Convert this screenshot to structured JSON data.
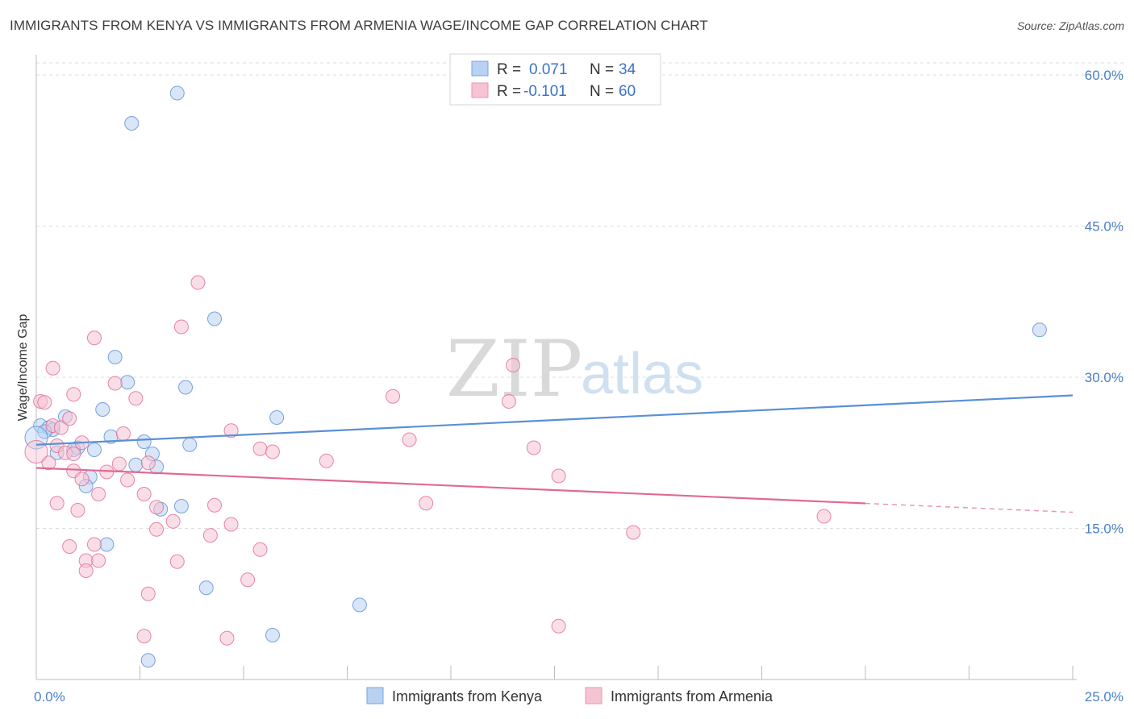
{
  "chart_data": {
    "type": "scatter",
    "title": "IMMIGRANTS FROM KENYA VS IMMIGRANTS FROM ARMENIA WAGE/INCOME GAP CORRELATION CHART",
    "source": "Source: ZipAtlas.com",
    "xlabel": "",
    "ylabel": "Wage/Income Gap",
    "xlim": [
      0,
      25
    ],
    "ylim": [
      0,
      62
    ],
    "x_tick_labels": [
      "0.0%",
      "25.0%"
    ],
    "y_ticks": [
      15,
      30,
      45,
      60
    ],
    "y_tick_labels": [
      "15.0%",
      "30.0%",
      "45.0%",
      "60.0%"
    ],
    "watermark": {
      "part1": "ZIP",
      "part2": "atlas"
    },
    "legend": {
      "r_label": "R =",
      "n_label": "N =",
      "entries": [
        {
          "r": "0.071",
          "n": "34"
        },
        {
          "r": "-0.101",
          "n": "60"
        }
      ]
    },
    "series": [
      {
        "name": "Immigrants from Kenya",
        "color": "#5b8fd6",
        "fill": "#b9d2f1",
        "trend": {
          "x0": 0,
          "y0": 23.3,
          "x1": 25,
          "y1": 28.2,
          "solid_to": 25
        },
        "points": [
          [
            3.4,
            58.2
          ],
          [
            2.3,
            55.2
          ],
          [
            4.3,
            35.8
          ],
          [
            1.9,
            32.0
          ],
          [
            2.2,
            29.5
          ],
          [
            3.6,
            29.0
          ],
          [
            24.2,
            34.7
          ],
          [
            1.6,
            26.8
          ],
          [
            5.8,
            26.0
          ],
          [
            0.1,
            25.2
          ],
          [
            0.3,
            25.0
          ],
          [
            0.4,
            24.8
          ],
          [
            0.7,
            26.1
          ],
          [
            0.2,
            24.6
          ],
          [
            1.8,
            24.1
          ],
          [
            2.6,
            23.6
          ],
          [
            3.7,
            23.3
          ],
          [
            1.4,
            22.8
          ],
          [
            1.0,
            23.0
          ],
          [
            0.5,
            22.5
          ],
          [
            2.8,
            22.4
          ],
          [
            0.9,
            22.8
          ],
          [
            2.4,
            21.3
          ],
          [
            2.9,
            21.1
          ],
          [
            1.3,
            20.1
          ],
          [
            1.2,
            19.2
          ],
          [
            3.5,
            17.2
          ],
          [
            3.0,
            16.9
          ],
          [
            1.7,
            13.4
          ],
          [
            4.1,
            9.1
          ],
          [
            7.8,
            7.4
          ],
          [
            5.7,
            4.4
          ],
          [
            2.7,
            1.9
          ],
          [
            0.0,
            24.0
          ]
        ]
      },
      {
        "name": "Immigrants from Armenia",
        "color": "#e06a93",
        "fill": "#f6c3d3",
        "trend": {
          "x0": 0,
          "y0": 21.0,
          "x1": 25,
          "y1": 16.6,
          "solid_to": 20.0
        },
        "points": [
          [
            3.9,
            39.4
          ],
          [
            3.5,
            35.0
          ],
          [
            1.4,
            33.9
          ],
          [
            0.4,
            30.9
          ],
          [
            1.9,
            29.4
          ],
          [
            11.5,
            31.2
          ],
          [
            0.1,
            27.6
          ],
          [
            0.2,
            27.5
          ],
          [
            0.9,
            28.3
          ],
          [
            2.4,
            27.9
          ],
          [
            8.6,
            28.1
          ],
          [
            11.4,
            27.6
          ],
          [
            0.4,
            25.2
          ],
          [
            0.6,
            25.0
          ],
          [
            0.8,
            25.9
          ],
          [
            2.1,
            24.4
          ],
          [
            4.7,
            24.7
          ],
          [
            9.0,
            23.8
          ],
          [
            0.5,
            23.2
          ],
          [
            1.1,
            23.5
          ],
          [
            5.4,
            22.9
          ],
          [
            5.7,
            22.6
          ],
          [
            0.7,
            22.5
          ],
          [
            0.9,
            22.4
          ],
          [
            12.0,
            23.0
          ],
          [
            0.3,
            21.5
          ],
          [
            2.0,
            21.4
          ],
          [
            2.7,
            21.5
          ],
          [
            7.0,
            21.7
          ],
          [
            0.9,
            20.7
          ],
          [
            1.7,
            20.6
          ],
          [
            2.2,
            19.8
          ],
          [
            12.6,
            20.2
          ],
          [
            1.1,
            19.9
          ],
          [
            2.6,
            18.4
          ],
          [
            1.5,
            18.4
          ],
          [
            0.5,
            17.5
          ],
          [
            2.9,
            17.1
          ],
          [
            4.3,
            17.3
          ],
          [
            9.4,
            17.5
          ],
          [
            1.0,
            16.8
          ],
          [
            3.3,
            15.7
          ],
          [
            4.7,
            15.4
          ],
          [
            2.9,
            14.9
          ],
          [
            4.2,
            14.3
          ],
          [
            14.4,
            14.6
          ],
          [
            19.0,
            16.2
          ],
          [
            0.8,
            13.2
          ],
          [
            1.4,
            13.4
          ],
          [
            5.4,
            12.9
          ],
          [
            1.2,
            11.8
          ],
          [
            1.5,
            11.8
          ],
          [
            3.4,
            11.7
          ],
          [
            1.2,
            10.8
          ],
          [
            5.1,
            9.9
          ],
          [
            2.7,
            8.5
          ],
          [
            12.6,
            5.3
          ],
          [
            2.6,
            4.3
          ],
          [
            4.6,
            4.1
          ],
          [
            0.0,
            22.6
          ]
        ]
      }
    ]
  }
}
